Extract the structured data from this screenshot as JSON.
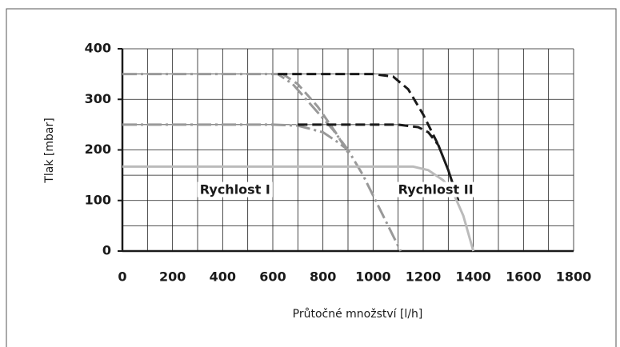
{
  "chart_data": {
    "type": "line",
    "xlabel": "Průtočné množství [l/h]",
    "ylabel": "Tlak [mbar]",
    "xlim": [
      0,
      1800
    ],
    "ylim": [
      0,
      400
    ],
    "xticks": [
      0,
      200,
      400,
      600,
      800,
      1000,
      1200,
      1400,
      1600,
      1800
    ],
    "yticks": [
      0,
      100,
      200,
      300,
      400
    ],
    "x_grid": [
      0,
      100,
      200,
      300,
      400,
      500,
      600,
      700,
      800,
      900,
      1000,
      1100,
      1200,
      1300,
      1400,
      1500,
      1600,
      1700,
      1800
    ],
    "y_grid": [
      0,
      50,
      100,
      150,
      200,
      250,
      300,
      350,
      400
    ],
    "grid": true,
    "series": [
      {
        "color": "#999999",
        "style": "dashdot",
        "x": [
          0,
          620,
          680,
          760,
          840,
          900,
          960,
          1040,
          1110
        ],
        "values": [
          350,
          350,
          330,
          285,
          240,
          200,
          150,
          70,
          0
        ]
      },
      {
        "color": "#999999",
        "style": "dashdot",
        "x": [
          0,
          600,
          700,
          800,
          860,
          900
        ],
        "values": [
          250,
          250,
          248,
          235,
          215,
          200
        ]
      },
      {
        "color": "#999999",
        "style": "dashed",
        "x": [
          640,
          700,
          780,
          850,
          900
        ],
        "values": [
          350,
          330,
          285,
          235,
          195
        ]
      },
      {
        "color": "#1a1a1a",
        "style": "dashed",
        "x": [
          620,
          1000,
          1080,
          1140,
          1200,
          1240,
          1260
        ],
        "values": [
          350,
          350,
          345,
          320,
          270,
          230,
          210
        ]
      },
      {
        "color": "#1a1a1a",
        "style": "dashed",
        "x": [
          700,
          1100,
          1180,
          1220,
          1260
        ],
        "values": [
          250,
          250,
          245,
          235,
          210
        ]
      },
      {
        "color": "#1a1a1a",
        "style": "solid",
        "x": [
          1260,
          1300,
          1340
        ],
        "values": [
          210,
          160,
          100
        ]
      },
      {
        "color": "#bbbbbb",
        "style": "solid",
        "x": [
          0,
          1160,
          1220,
          1280,
          1320,
          1360,
          1400
        ],
        "values": [
          167,
          167,
          160,
          140,
          115,
          70,
          0
        ]
      }
    ],
    "annotations": [
      {
        "text": "Rychlost I",
        "x": 590,
        "y": 120
      },
      {
        "text": "Rychlost II",
        "x": 1400,
        "y": 120
      }
    ]
  }
}
